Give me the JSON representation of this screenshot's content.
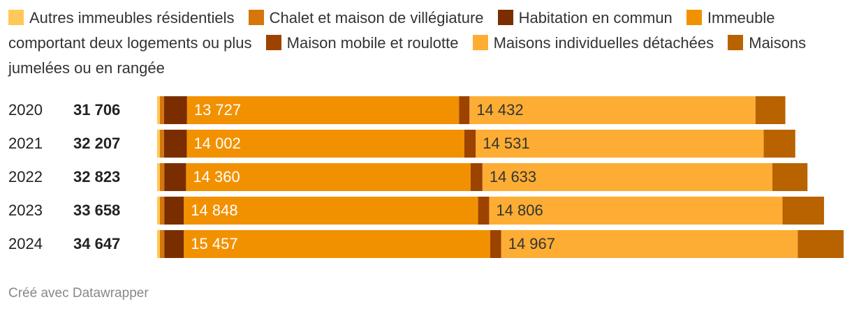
{
  "chart_data": {
    "type": "stacked-bar-horizontal",
    "categories": [
      "2020",
      "2021",
      "2022",
      "2023",
      "2024"
    ],
    "totals": [
      31706,
      32207,
      32823,
      33658,
      34647
    ],
    "total_labels": [
      "31 706",
      "32 207",
      "32 823",
      "33 658",
      "34 647"
    ],
    "series": [
      {
        "name": "Autres immeubles résidentiels",
        "color": "#ffc857",
        "values": [
          140,
          140,
          140,
          140,
          140
        ]
      },
      {
        "name": "Chalet et maison de villégiature",
        "color": "#d4760a",
        "values": [
          210,
          210,
          220,
          220,
          220
        ]
      },
      {
        "name": "Habitation en commun",
        "color": "#7a2e00",
        "values": [
          1160,
          1150,
          1100,
          990,
          990
        ]
      },
      {
        "name": "Immeuble comportant deux logements ou plus",
        "color": "#f29100",
        "values": [
          13727,
          14002,
          14360,
          14848,
          15457
        ],
        "value_labels": [
          "13 727",
          "14 002",
          "14 360",
          "14 848",
          "15 457"
        ]
      },
      {
        "name": "Maison mobile et roulotte",
        "color": "#9c4300",
        "values": [
          530,
          580,
          600,
          560,
          560
        ]
      },
      {
        "name": "Maisons individuelles détachées",
        "color": "#fdad33",
        "values": [
          14432,
          14531,
          14633,
          14806,
          14967
        ],
        "value_labels": [
          "14 432",
          "14 531",
          "14 633",
          "14 806",
          "14 967"
        ]
      },
      {
        "name": "Maisons jumelées ou en rangée",
        "color": "#b86200",
        "values": [
          1507,
          1594,
          1770,
          2094,
          2313
        ]
      }
    ],
    "footer": "Créé avec Datawrapper"
  }
}
